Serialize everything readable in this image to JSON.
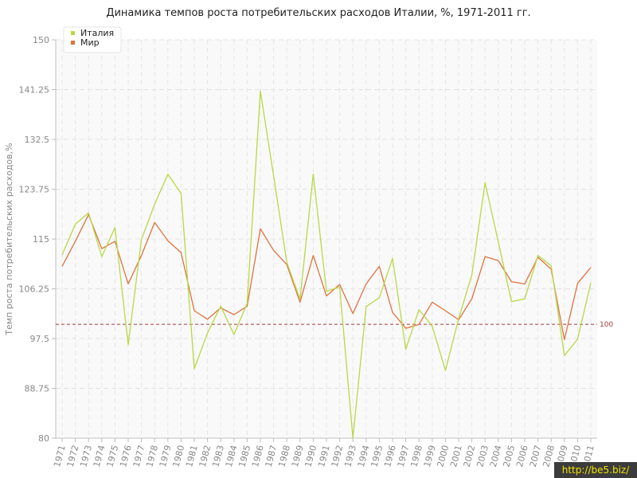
{
  "page": {
    "watermark": "http://be5.biz/"
  },
  "chart_data": {
    "type": "line",
    "title": "Динамика темпов роста потребительских расходов Италии, %, 1971-2011 гг.",
    "xlabel": "",
    "ylabel": "Темп роста потребительских расходов,%",
    "ylim": [
      80,
      150
    ],
    "yticks": [
      "80",
      "88.75",
      "97.5",
      "106.25",
      "115",
      "123.75",
      "132.5",
      "141.25",
      "150"
    ],
    "reference_line": {
      "value": 100,
      "label": "100",
      "color": "#a83a3a"
    },
    "legend": {
      "position": "top-left"
    },
    "grid": true,
    "x": [
      "1971",
      "1972",
      "1973",
      "1974",
      "1975",
      "1976",
      "1977",
      "1978",
      "1979",
      "1980",
      "1981",
      "1982",
      "1983",
      "1984",
      "1985",
      "1986",
      "1987",
      "1988",
      "1989",
      "1990",
      "1991",
      "1992",
      "1993",
      "1994",
      "1995",
      "1996",
      "1997",
      "1998",
      "1999",
      "2000",
      "2001",
      "2002",
      "2003",
      "2004",
      "2005",
      "2006",
      "2007",
      "2008",
      "2009",
      "2010",
      "2011"
    ],
    "series": [
      {
        "name": "Италия",
        "color": "#b8d845",
        "values": [
          112.2,
          117.6,
          119.6,
          111.9,
          117.0,
          96.4,
          114.9,
          121.1,
          126.4,
          123.0,
          92.2,
          98.5,
          103.2,
          98.2,
          103.7,
          141.0,
          126.1,
          110.9,
          104.4,
          126.4,
          105.8,
          106.6,
          80.0,
          103.1,
          104.7,
          111.6,
          95.6,
          102.6,
          99.7,
          91.9,
          101.0,
          108.7,
          124.9,
          114.5,
          104.0,
          104.5,
          112.1,
          110.3,
          94.5,
          97.4,
          107.3
        ]
      },
      {
        "name": "Мир",
        "color": "#e0723e",
        "values": [
          110.2,
          114.6,
          119.3,
          113.3,
          114.6,
          107.1,
          112.1,
          117.9,
          114.7,
          112.6,
          102.4,
          100.9,
          102.9,
          101.7,
          103.2,
          116.8,
          113.0,
          110.5,
          103.9,
          112.1,
          105.0,
          107.0,
          101.9,
          107.1,
          110.2,
          102.1,
          99.3,
          100.0,
          103.9,
          102.4,
          100.8,
          104.5,
          111.9,
          111.2,
          107.5,
          107.1,
          111.8,
          109.7,
          97.3,
          107.2,
          110.0
        ]
      }
    ]
  }
}
